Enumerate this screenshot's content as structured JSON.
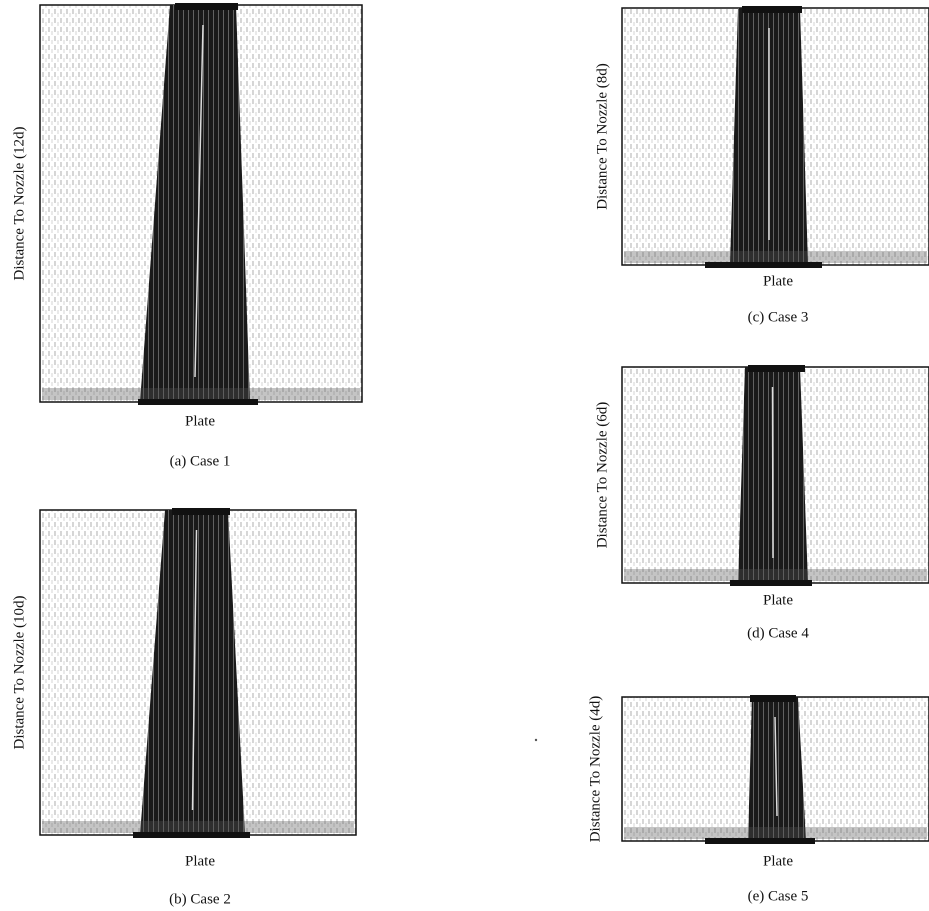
{
  "panels": [
    {
      "ylabel": "Distance To Nozzle (12d)",
      "xlabel": "Plate",
      "caption": "(a) Case 1"
    },
    {
      "ylabel": "Distance To Nozzle (10d)",
      "xlabel": "Plate",
      "caption": "(b) Case 2"
    },
    {
      "ylabel": "Distance To Nozzle (8d)",
      "xlabel": "Plate",
      "caption": "(c) Case 3"
    },
    {
      "ylabel": "Distance To Nozzle (6d)",
      "xlabel": "Plate",
      "caption": "(d) Case 4"
    },
    {
      "ylabel": "Distance To Nozzle (4d)",
      "xlabel": "Plate",
      "caption": "(e) Case 5"
    }
  ]
}
